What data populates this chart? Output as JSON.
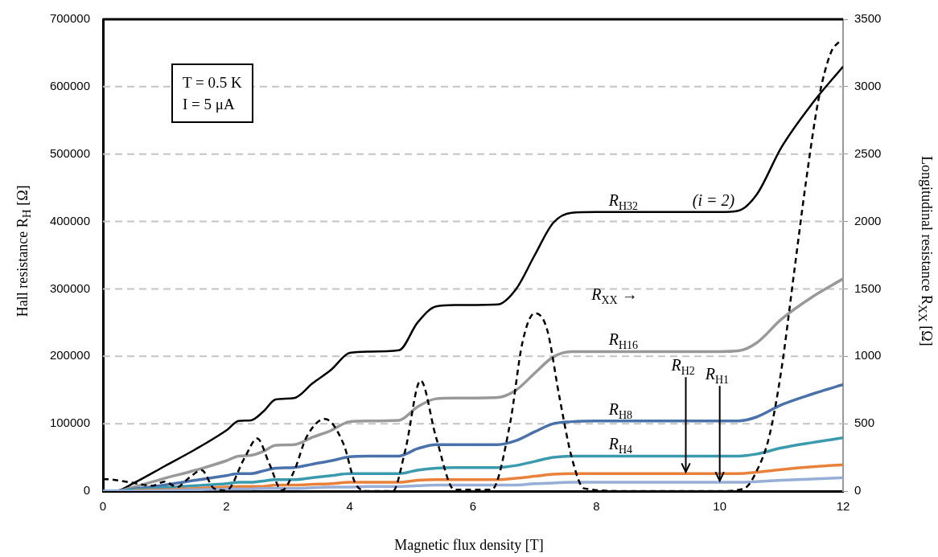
{
  "chart_data": {
    "type": "line",
    "xlabel": "Magnetic flux density [T]",
    "ylabel": "Hall resistance R$_{H}$ [Ω]",
    "y2label": "Longitudinal resistance R$_{XX}$ [Ω]",
    "annotations": [
      "T = 0.5 K",
      "I = 5 μA",
      {
        "text": "(i = 2)",
        "x": 9.9,
        "y": 414000
      },
      "R$_{XX}$ →"
    ],
    "x": [
      0,
      0.2,
      0.5,
      1,
      1.5,
      2,
      2.2,
      2.4,
      2.6,
      2.8,
      3.1,
      3.4,
      3.7,
      4.0,
      4.3,
      4.8,
      5.1,
      5.4,
      5.7,
      6.4,
      6.7,
      7.0,
      7.3,
      7.6,
      8,
      9,
      10,
      10.3,
      10.6,
      11,
      11.5,
      12
    ],
    "series": [
      {
        "name": "R$_{H32}$",
        "color": "#000000",
        "values": [
          0,
          0,
          12000,
          37000,
          62000,
          90000,
          104000,
          105000,
          118000,
          136000,
          138000,
          160000,
          180000,
          205000,
          207000,
          209000,
          250000,
          274000,
          276000,
          277000,
          300000,
          350000,
          398000,
          413000,
          414000,
          414000,
          414000,
          416000,
          440000,
          510000,
          575000,
          630000
        ]
      },
      {
        "name": "R$_{H16}$",
        "color": "#999999",
        "values": [
          0,
          0,
          6000,
          19000,
          31000,
          45000,
          52000,
          53000,
          59000,
          68000,
          69000,
          80000,
          90000,
          103000,
          104000,
          105000,
          125000,
          137000,
          138000,
          139000,
          150000,
          175000,
          199000,
          207000,
          207000,
          207000,
          207000,
          208000,
          220000,
          255000,
          288000,
          315000
        ]
      },
      {
        "name": "R$_{H8}$",
        "color": "#4a72aa",
        "values": [
          0,
          0,
          3000,
          9000,
          16000,
          23000,
          26000,
          26000,
          30000,
          34000,
          35000,
          40000,
          45000,
          51000,
          52000,
          52000,
          63000,
          69000,
          69000,
          69000,
          75000,
          88000,
          100000,
          103000,
          104000,
          104000,
          104000,
          104000,
          110000,
          128000,
          144000,
          158000
        ]
      },
      {
        "name": "R$_{H4}$",
        "color": "#3b9bae",
        "values": [
          0,
          0,
          2000,
          5000,
          8000,
          11000,
          13000,
          13000,
          15000,
          17000,
          17000,
          20000,
          23000,
          26000,
          26000,
          26000,
          31000,
          34000,
          35000,
          35000,
          38000,
          44000,
          50000,
          52000,
          52000,
          52000,
          52000,
          52000,
          55000,
          64000,
          72000,
          79000
        ]
      },
      {
        "name": "R$_{H2}$",
        "color": "#e8823a",
        "values": [
          null,
          null,
          1000,
          2000,
          4000,
          6000,
          7000,
          7000,
          7000,
          9000,
          9000,
          10000,
          11000,
          13000,
          13000,
          13000,
          16000,
          17000,
          17000,
          17000,
          19000,
          22000,
          25000,
          26000,
          26000,
          26000,
          26000,
          26000,
          28000,
          32000,
          36000,
          39000
        ]
      },
      {
        "name": "R$_{H1}$",
        "color": "#97aed6",
        "values": [
          0,
          0,
          0,
          1000,
          2000,
          3000,
          3000,
          3000,
          4000,
          4000,
          4000,
          5000,
          6000,
          6000,
          7000,
          7000,
          8000,
          9000,
          9000,
          9000,
          9000,
          11000,
          12000,
          13000,
          13000,
          13000,
          13000,
          13000,
          14000,
          16000,
          18000,
          20000
        ]
      },
      {
        "color": "#000000",
        "axis": "y2",
        "line_style": "dashed",
        "x": [
          0,
          0.15,
          0.5,
          0.8,
          1.0,
          1.2,
          1.4,
          1.6,
          1.8,
          2.0,
          2.3,
          2.5,
          2.7,
          2.9,
          3.1,
          3.3,
          3.6,
          3.9,
          4.1,
          4.3,
          4.7,
          4.9,
          5.15,
          5.4,
          5.7,
          6.3,
          6.6,
          6.8,
          7.0,
          7.2,
          7.4,
          7.6,
          7.8,
          8.5,
          10,
          10.4,
          10.6,
          10.8,
          11.0,
          11.2,
          11.4,
          11.6,
          11.8,
          11.95
        ],
        "values": [
          90,
          85,
          60,
          40,
          70,
          30,
          100,
          155,
          20,
          5,
          250,
          390,
          200,
          5,
          150,
          400,
          535,
          350,
          50,
          0,
          0,
          300,
          820,
          400,
          10,
          10,
          500,
          1100,
          1320,
          1200,
          700,
          250,
          20,
          0,
          0,
          20,
          150,
          400,
          900,
          1600,
          2300,
          2900,
          3250,
          3340
        ]
      }
    ],
    "xlim": [
      0,
      12
    ],
    "xticks": [
      0,
      2,
      4,
      6,
      8,
      10,
      12
    ],
    "ylim": [
      0,
      700000
    ],
    "yticks": [
      0,
      100000,
      200000,
      300000,
      400000,
      500000,
      600000,
      700000
    ],
    "y2lim": [
      0,
      3500
    ],
    "y2ticks": [
      0,
      500,
      1000,
      1500,
      2000,
      2500,
      3000,
      3500
    ],
    "grid": "y",
    "legend": false,
    "marker": "none",
    "line_style": "solid"
  }
}
